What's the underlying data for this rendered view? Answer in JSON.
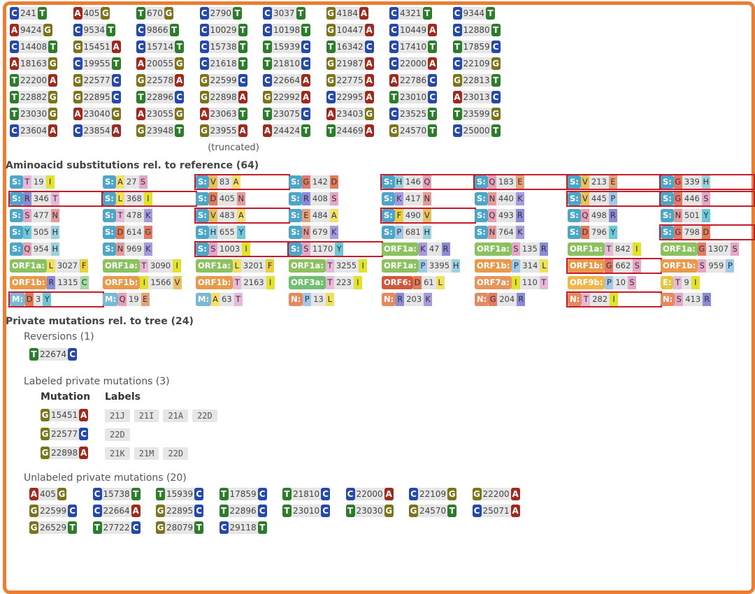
{
  "nuc_subs": [
    [
      "C",
      "241",
      "T"
    ],
    [
      "A",
      "405",
      "G"
    ],
    [
      "T",
      "670",
      "G"
    ],
    [
      "C",
      "2790",
      "T"
    ],
    [
      "C",
      "3037",
      "T"
    ],
    [
      "G",
      "4184",
      "A"
    ],
    [
      "C",
      "4321",
      "T"
    ],
    [
      "C",
      "9344",
      "T"
    ],
    [
      "A",
      "9424",
      "G"
    ],
    [
      "C",
      "9534",
      "T"
    ],
    [
      "C",
      "9866",
      "T"
    ],
    [
      "C",
      "10029",
      "T"
    ],
    [
      "C",
      "10198",
      "T"
    ],
    [
      "G",
      "10447",
      "A"
    ],
    [
      "C",
      "10449",
      "A"
    ],
    [
      "C",
      "12880",
      "T"
    ],
    [
      "C",
      "14408",
      "T"
    ],
    [
      "G",
      "15451",
      "A"
    ],
    [
      "C",
      "15714",
      "T"
    ],
    [
      "C",
      "15738",
      "T"
    ],
    [
      "T",
      "15939",
      "C"
    ],
    [
      "T",
      "16342",
      "C"
    ],
    [
      "C",
      "17410",
      "T"
    ],
    [
      "T",
      "17859",
      "C"
    ],
    [
      "A",
      "18163",
      "G"
    ],
    [
      "C",
      "19955",
      "T"
    ],
    [
      "A",
      "20055",
      "G"
    ],
    [
      "C",
      "21618",
      "T"
    ],
    [
      "T",
      "21810",
      "C"
    ],
    [
      "G",
      "21987",
      "A"
    ],
    [
      "C",
      "22000",
      "A"
    ],
    [
      "C",
      "22109",
      "G"
    ],
    [
      "T",
      "22200",
      "A"
    ],
    [
      "G",
      "22577",
      "C"
    ],
    [
      "G",
      "22578",
      "A"
    ],
    [
      "G",
      "22599",
      "C"
    ],
    [
      "C",
      "22664",
      "A"
    ],
    [
      "G",
      "22775",
      "A"
    ],
    [
      "A",
      "22786",
      "C"
    ],
    [
      "G",
      "22813",
      "T"
    ],
    [
      "T",
      "22882",
      "G"
    ],
    [
      "G",
      "22895",
      "C"
    ],
    [
      "T",
      "22896",
      "C"
    ],
    [
      "G",
      "22898",
      "A"
    ],
    [
      "G",
      "22992",
      "A"
    ],
    [
      "C",
      "22995",
      "A"
    ],
    [
      "T",
      "23010",
      "C"
    ],
    [
      "A",
      "23013",
      "C"
    ],
    [
      "T",
      "23030",
      "G"
    ],
    [
      "A",
      "23040",
      "G"
    ],
    [
      "A",
      "23055",
      "G"
    ],
    [
      "A",
      "23063",
      "T"
    ],
    [
      "T",
      "23075",
      "C"
    ],
    [
      "A",
      "23403",
      "G"
    ],
    [
      "C",
      "23525",
      "T"
    ],
    [
      "T",
      "23599",
      "G"
    ],
    [
      "C",
      "23604",
      "A"
    ],
    [
      "C",
      "23854",
      "A"
    ],
    [
      "G",
      "23948",
      "T"
    ],
    [
      "G",
      "23955",
      "A"
    ],
    [
      "A",
      "24424",
      "T"
    ],
    [
      "T",
      "24469",
      "A"
    ],
    [
      "G",
      "24570",
      "T"
    ],
    [
      "C",
      "25000",
      "T"
    ]
  ],
  "truncated_text": "(truncated)",
  "aa_header": "Aminoacid substitutions rel. to reference (64)",
  "aa_subs": [
    [
      "S:",
      "T",
      "19",
      "I",
      false
    ],
    [
      "S:",
      "A",
      "27",
      "S",
      false
    ],
    [
      "S:",
      "V",
      "83",
      "A",
      true
    ],
    [
      "S:",
      "G",
      "142",
      "D",
      false
    ],
    [
      "S:",
      "H",
      "146",
      "Q",
      true
    ],
    [
      "S:",
      "Q",
      "183",
      "E",
      true
    ],
    [
      "S:",
      "V",
      "213",
      "E",
      true
    ],
    [
      "S:",
      "G",
      "339",
      "H",
      true
    ],
    [
      "S:",
      "R",
      "346",
      "T",
      true
    ],
    [
      "S:",
      "L",
      "368",
      "I",
      true
    ],
    [
      "S:",
      "D",
      "405",
      "N",
      false
    ],
    [
      "S:",
      "R",
      "408",
      "S",
      false
    ],
    [
      "S:",
      "K",
      "417",
      "N",
      false
    ],
    [
      "S:",
      "N",
      "440",
      "K",
      false
    ],
    [
      "S:",
      "V",
      "445",
      "P",
      true
    ],
    [
      "S:",
      "G",
      "446",
      "S",
      true
    ],
    [
      "S:",
      "S",
      "477",
      "N",
      false
    ],
    [
      "S:",
      "T",
      "478",
      "K",
      false
    ],
    [
      "S:",
      "V",
      "483",
      "A",
      true
    ],
    [
      "S:",
      "E",
      "484",
      "A",
      false
    ],
    [
      "S:",
      "F",
      "490",
      "V",
      true
    ],
    [
      "S:",
      "Q",
      "493",
      "R",
      false
    ],
    [
      "S:",
      "Q",
      "498",
      "R",
      false
    ],
    [
      "S:",
      "N",
      "501",
      "Y",
      false
    ],
    [
      "S:",
      "Y",
      "505",
      "H",
      false
    ],
    [
      "S:",
      "D",
      "614",
      "G",
      false
    ],
    [
      "S:",
      "H",
      "655",
      "Y",
      false
    ],
    [
      "S:",
      "N",
      "679",
      "K",
      false
    ],
    [
      "S:",
      "P",
      "681",
      "H",
      false
    ],
    [
      "S:",
      "N",
      "764",
      "K",
      false
    ],
    [
      "S:",
      "D",
      "796",
      "Y",
      false
    ],
    [
      "S:",
      "G",
      "798",
      "D",
      true
    ],
    [
      "S:",
      "Q",
      "954",
      "H",
      false
    ],
    [
      "S:",
      "N",
      "969",
      "K",
      false
    ],
    [
      "S:",
      "S",
      "1003",
      "I",
      true
    ],
    [
      "S:",
      "S",
      "1170",
      "Y",
      true
    ],
    [
      "ORF1a:",
      "K",
      "47",
      "R",
      false
    ],
    [
      "ORF1a:",
      "S",
      "135",
      "R",
      false
    ],
    [
      "ORF1a:",
      "T",
      "842",
      "I",
      false
    ],
    [
      "ORF1a:",
      "G",
      "1307",
      "S",
      false
    ],
    [
      "ORF1a:",
      "L",
      "3027",
      "F",
      false
    ],
    [
      "ORF1a:",
      "T",
      "3090",
      "I",
      false
    ],
    [
      "ORF1a:",
      "L",
      "3201",
      "F",
      false
    ],
    [
      "ORF1a:",
      "T",
      "3255",
      "I",
      false
    ],
    [
      "ORF1a:",
      "P",
      "3395",
      "H",
      false
    ],
    [
      "ORF1b:",
      "P",
      "314",
      "L",
      false
    ],
    [
      "ORF1b:",
      "G",
      "662",
      "S",
      true
    ],
    [
      "ORF1b:",
      "S",
      "959",
      "P",
      false
    ],
    [
      "ORF1b:",
      "R",
      "1315",
      "C",
      false
    ],
    [
      "ORF1b:",
      "I",
      "1566",
      "V",
      false
    ],
    [
      "ORF1b:",
      "T",
      "2163",
      "I",
      false
    ],
    [
      "ORF3a:",
      "T",
      "223",
      "I",
      false
    ],
    [
      "ORF6:",
      "D",
      "61",
      "L",
      false
    ],
    [
      "ORF7a:",
      "I",
      "110",
      "T",
      false
    ],
    [
      "ORF9b:",
      "P",
      "10",
      "S",
      false
    ],
    [
      "E:",
      "T",
      "9",
      "I",
      false
    ],
    [
      "M:",
      "D",
      "3",
      "Y",
      true
    ],
    [
      "M:",
      "Q",
      "19",
      "E",
      false
    ],
    [
      "M:",
      "A",
      "63",
      "T",
      false
    ],
    [
      "N:",
      "P",
      "13",
      "L",
      false
    ],
    [
      "N:",
      "R",
      "203",
      "K",
      false
    ],
    [
      "N:",
      "G",
      "204",
      "R",
      false
    ],
    [
      "N:",
      "T",
      "282",
      "I",
      true
    ],
    [
      "N:",
      "S",
      "413",
      "R",
      false
    ]
  ],
  "aa_colors": {
    "A": "#f5e06e",
    "R": "#8b8bd8",
    "N": "#e59a9a",
    "D": "#e07a5a",
    "C": "#a4d8a4",
    "Q": "#e8a0b8",
    "E": "#e8a27a",
    "G": "#e27a6a",
    "H": "#9ad0e0",
    "I": "#e2e22c",
    "L": "#f0e060",
    "K": "#a89ae0",
    "M": "#e0d080",
    "F": "#e8d040",
    "P": "#a0c8e8",
    "S": "#e6a6c8",
    "T": "#e8b8d8",
    "W": "#b0b0b0",
    "Y": "#6ac8d8",
    "V": "#e8c060"
  },
  "private_header": "Private mutations rel. to tree (24)",
  "reversions_header": "Reversions (1)",
  "reversions": [
    [
      "T",
      "22674",
      "C"
    ]
  ],
  "labeled_header": "Labeled private mutations (3)",
  "labeled_col_mutation": "Mutation",
  "labeled_col_labels": "Labels",
  "labeled": [
    {
      "mut": [
        "G",
        "15451",
        "A"
      ],
      "labels": [
        "21J",
        "21I",
        "21A",
        "22D"
      ]
    },
    {
      "mut": [
        "G",
        "22577",
        "C"
      ],
      "labels": [
        "22D"
      ]
    },
    {
      "mut": [
        "G",
        "22898",
        "A"
      ],
      "labels": [
        "21K",
        "21M",
        "22D"
      ]
    }
  ],
  "unlabeled_header": "Unlabeled private mutations (20)",
  "unlabeled": [
    [
      "A",
      "405",
      "G"
    ],
    [
      "C",
      "15738",
      "T"
    ],
    [
      "T",
      "15939",
      "C"
    ],
    [
      "T",
      "17859",
      "C"
    ],
    [
      "T",
      "21810",
      "C"
    ],
    [
      "C",
      "22000",
      "A"
    ],
    [
      "C",
      "22109",
      "G"
    ],
    [
      "G",
      "22200",
      "A"
    ],
    [
      "G",
      "22599",
      "C"
    ],
    [
      "C",
      "22664",
      "A"
    ],
    [
      "G",
      "22895",
      "C"
    ],
    [
      "T",
      "22896",
      "C"
    ],
    [
      "T",
      "23010",
      "C"
    ],
    [
      "T",
      "23030",
      "G"
    ],
    [
      "G",
      "24570",
      "T"
    ],
    [
      "C",
      "25071",
      "A"
    ],
    [
      "G",
      "26529",
      "T"
    ],
    [
      "T",
      "27722",
      "C"
    ],
    [
      "G",
      "28079",
      "T"
    ],
    [
      "C",
      "29118",
      "T"
    ]
  ]
}
